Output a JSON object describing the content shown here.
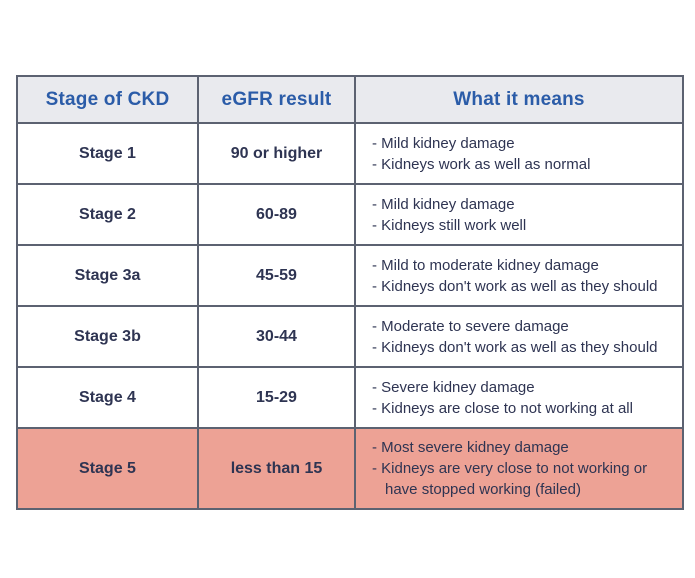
{
  "page": {
    "background_color": "#ffffff"
  },
  "table": {
    "colors": {
      "header_background": "#e9eaee",
      "header_text": "#2b5ca8",
      "body_text": "#2e3452",
      "border": "#5c6271",
      "highlight_row_background": "#eda295"
    },
    "headers": [
      {
        "label": "Stage of CKD"
      },
      {
        "label": "eGFR result"
      },
      {
        "label": "What it means"
      }
    ],
    "rows": [
      {
        "stage": "Stage 1",
        "egfr": "90 or higher",
        "meaning": [
          "- Mild kidney damage",
          "- Kidneys work as well as normal"
        ],
        "highlight": false
      },
      {
        "stage": "Stage 2",
        "egfr": "60-89",
        "meaning": [
          "- Mild kidney damage",
          "- Kidneys still work well"
        ],
        "highlight": false
      },
      {
        "stage": "Stage 3a",
        "egfr": "45-59",
        "meaning": [
          "- Mild to moderate kidney damage",
          "- Kidneys don't work as well as they should"
        ],
        "highlight": false
      },
      {
        "stage": "Stage 3b",
        "egfr": "30-44",
        "meaning": [
          "- Moderate to severe damage",
          "- Kidneys don't work as well as they should"
        ],
        "highlight": false
      },
      {
        "stage": "Stage 4",
        "egfr": "15-29",
        "meaning": [
          "- Severe kidney damage",
          "- Kidneys are close to not working at all"
        ],
        "highlight": false
      },
      {
        "stage": "Stage 5",
        "egfr": "less than 15",
        "meaning": [
          "- Most severe kidney damage",
          "- Kidneys are very close to not working or have stopped working (failed)"
        ],
        "highlight": true
      }
    ]
  }
}
